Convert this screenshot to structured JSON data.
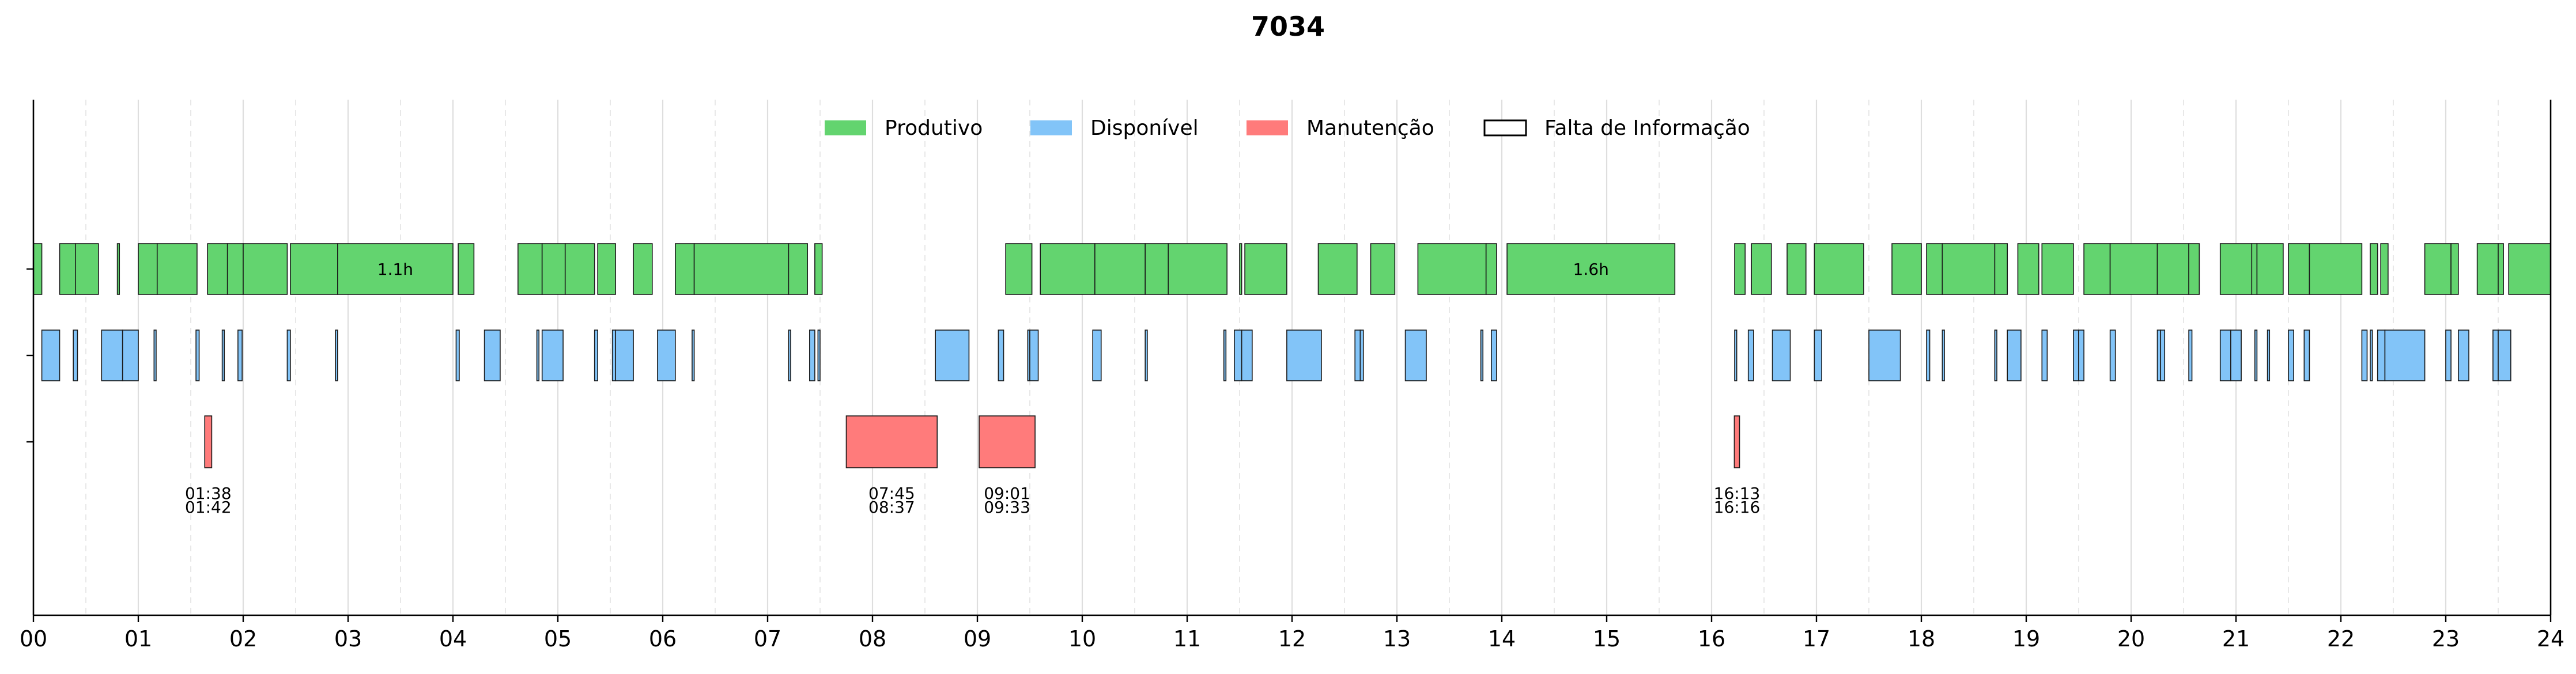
{
  "chart_data": {
    "type": "timeline",
    "title": "7034",
    "xlabel": "",
    "ylabel": "",
    "x_unit": "hours",
    "xlim": [
      0,
      24
    ],
    "x_ticks": [
      "00",
      "01",
      "02",
      "03",
      "04",
      "05",
      "06",
      "07",
      "08",
      "09",
      "10",
      "11",
      "12",
      "13",
      "14",
      "15",
      "16",
      "17",
      "18",
      "19",
      "20",
      "21",
      "22",
      "23",
      "24"
    ],
    "grid": "vertical, dashed at half hours",
    "legend_position": "top-center",
    "legend": [
      {
        "label": "Produtivo",
        "color": "#63d46f",
        "style": "filled"
      },
      {
        "label": "Disponível",
        "color": "#82c4f8",
        "style": "filled"
      },
      {
        "label": "Manutenção",
        "color": "#ff7b7b",
        "style": "filled"
      },
      {
        "label": "Falta de Informação",
        "color": "#ffffff",
        "style": "outline"
      }
    ],
    "lanes": [
      {
        "state": "Produtivo",
        "color": "#63d46f",
        "intervals": [
          [
            0.0,
            0.08
          ],
          [
            0.25,
            0.4
          ],
          [
            0.4,
            0.62
          ],
          [
            0.8,
            0.82
          ],
          [
            1.0,
            1.18
          ],
          [
            1.18,
            1.56
          ],
          [
            1.66,
            1.85
          ],
          [
            1.85,
            2.0
          ],
          [
            2.0,
            2.42
          ],
          [
            2.45,
            2.9
          ],
          [
            2.9,
            4.0
          ],
          [
            4.05,
            4.2
          ],
          [
            4.62,
            4.85
          ],
          [
            4.85,
            5.07
          ],
          [
            5.07,
            5.35
          ],
          [
            5.38,
            5.55
          ],
          [
            5.72,
            5.9
          ],
          [
            6.12,
            6.3
          ],
          [
            6.3,
            7.2
          ],
          [
            7.2,
            7.38
          ],
          [
            7.45,
            7.52
          ],
          [
            9.27,
            9.52
          ],
          [
            9.6,
            10.12
          ],
          [
            10.12,
            10.6
          ],
          [
            10.6,
            10.82
          ],
          [
            10.82,
            11.38
          ],
          [
            11.5,
            11.52
          ],
          [
            11.55,
            11.95
          ],
          [
            12.25,
            12.62
          ],
          [
            12.75,
            12.98
          ],
          [
            13.2,
            13.85
          ],
          [
            13.85,
            13.95
          ],
          [
            14.05,
            15.65
          ],
          [
            16.22,
            16.32
          ],
          [
            16.38,
            16.57
          ],
          [
            16.72,
            16.9
          ],
          [
            16.98,
            17.45
          ],
          [
            17.72,
            18.0
          ],
          [
            18.05,
            18.2
          ],
          [
            18.2,
            18.7
          ],
          [
            18.7,
            18.82
          ],
          [
            18.92,
            19.12
          ],
          [
            19.15,
            19.45
          ],
          [
            19.55,
            19.8
          ],
          [
            19.8,
            20.25
          ],
          [
            20.25,
            20.55
          ],
          [
            20.55,
            20.65
          ],
          [
            20.85,
            21.15
          ],
          [
            21.15,
            21.2
          ],
          [
            21.2,
            21.45
          ],
          [
            21.5,
            21.7
          ],
          [
            21.7,
            22.2
          ],
          [
            22.28,
            22.35
          ],
          [
            22.38,
            22.45
          ],
          [
            22.8,
            23.05
          ],
          [
            23.05,
            23.12
          ],
          [
            23.3,
            23.5
          ],
          [
            23.5,
            23.55
          ],
          [
            23.6,
            24.0
          ]
        ],
        "labels": [
          {
            "x": 3.45,
            "text": "1.1h"
          },
          {
            "x": 14.85,
            "text": "1.6h"
          }
        ]
      },
      {
        "state": "Disponível",
        "color": "#82c4f8",
        "intervals": [
          [
            0.08,
            0.25
          ],
          [
            0.38,
            0.42
          ],
          [
            0.65,
            0.85
          ],
          [
            0.85,
            1.0
          ],
          [
            1.15,
            1.17
          ],
          [
            1.55,
            1.58
          ],
          [
            1.8,
            1.82
          ],
          [
            1.95,
            1.99
          ],
          [
            2.42,
            2.45
          ],
          [
            2.88,
            2.9
          ],
          [
            4.03,
            4.06
          ],
          [
            4.3,
            4.45
          ],
          [
            4.8,
            4.82
          ],
          [
            4.85,
            5.05
          ],
          [
            5.35,
            5.38
          ],
          [
            5.52,
            5.55
          ],
          [
            5.55,
            5.72
          ],
          [
            5.95,
            6.12
          ],
          [
            6.28,
            6.3
          ],
          [
            7.2,
            7.22
          ],
          [
            7.4,
            7.45
          ],
          [
            7.48,
            7.5
          ],
          [
            8.6,
            8.92
          ],
          [
            9.2,
            9.25
          ],
          [
            9.48,
            9.5
          ],
          [
            9.5,
            9.58
          ],
          [
            10.1,
            10.18
          ],
          [
            10.6,
            10.62
          ],
          [
            11.35,
            11.37
          ],
          [
            11.45,
            11.52
          ],
          [
            11.52,
            11.62
          ],
          [
            11.95,
            12.28
          ],
          [
            12.6,
            12.65
          ],
          [
            12.65,
            12.68
          ],
          [
            13.08,
            13.28
          ],
          [
            13.8,
            13.82
          ],
          [
            13.9,
            13.95
          ],
          [
            16.22,
            16.24
          ],
          [
            16.35,
            16.4
          ],
          [
            16.58,
            16.75
          ],
          [
            16.98,
            17.05
          ],
          [
            17.5,
            17.8
          ],
          [
            18.05,
            18.08
          ],
          [
            18.2,
            18.22
          ],
          [
            18.7,
            18.72
          ],
          [
            18.82,
            18.95
          ],
          [
            19.15,
            19.2
          ],
          [
            19.45,
            19.5
          ],
          [
            19.5,
            19.55
          ],
          [
            19.8,
            19.85
          ],
          [
            20.25,
            20.28
          ],
          [
            20.28,
            20.32
          ],
          [
            20.55,
            20.58
          ],
          [
            20.85,
            20.95
          ],
          [
            20.95,
            21.05
          ],
          [
            21.18,
            21.2
          ],
          [
            21.3,
            21.32
          ],
          [
            21.5,
            21.55
          ],
          [
            21.65,
            21.7
          ],
          [
            22.2,
            22.25
          ],
          [
            22.28,
            22.3
          ],
          [
            22.35,
            22.42
          ],
          [
            22.42,
            22.8
          ],
          [
            23.0,
            23.05
          ],
          [
            23.12,
            23.22
          ],
          [
            23.45,
            23.5
          ],
          [
            23.5,
            23.62
          ]
        ],
        "labels": []
      },
      {
        "state": "Manutenção",
        "color": "#ff7b7b",
        "intervals": [
          [
            1.6333,
            1.7
          ],
          [
            7.75,
            8.6167
          ],
          [
            9.0167,
            9.55
          ],
          [
            16.2167,
            16.2667
          ]
        ],
        "labels": [
          {
            "x": 1.6667,
            "start": "01:38",
            "end": "01:42"
          },
          {
            "x": 8.1833,
            "start": "07:45",
            "end": "08:37"
          },
          {
            "x": 9.2833,
            "start": "09:01",
            "end": "09:33"
          },
          {
            "x": 16.2417,
            "start": "16:13",
            "end": "16:16"
          }
        ]
      }
    ]
  }
}
